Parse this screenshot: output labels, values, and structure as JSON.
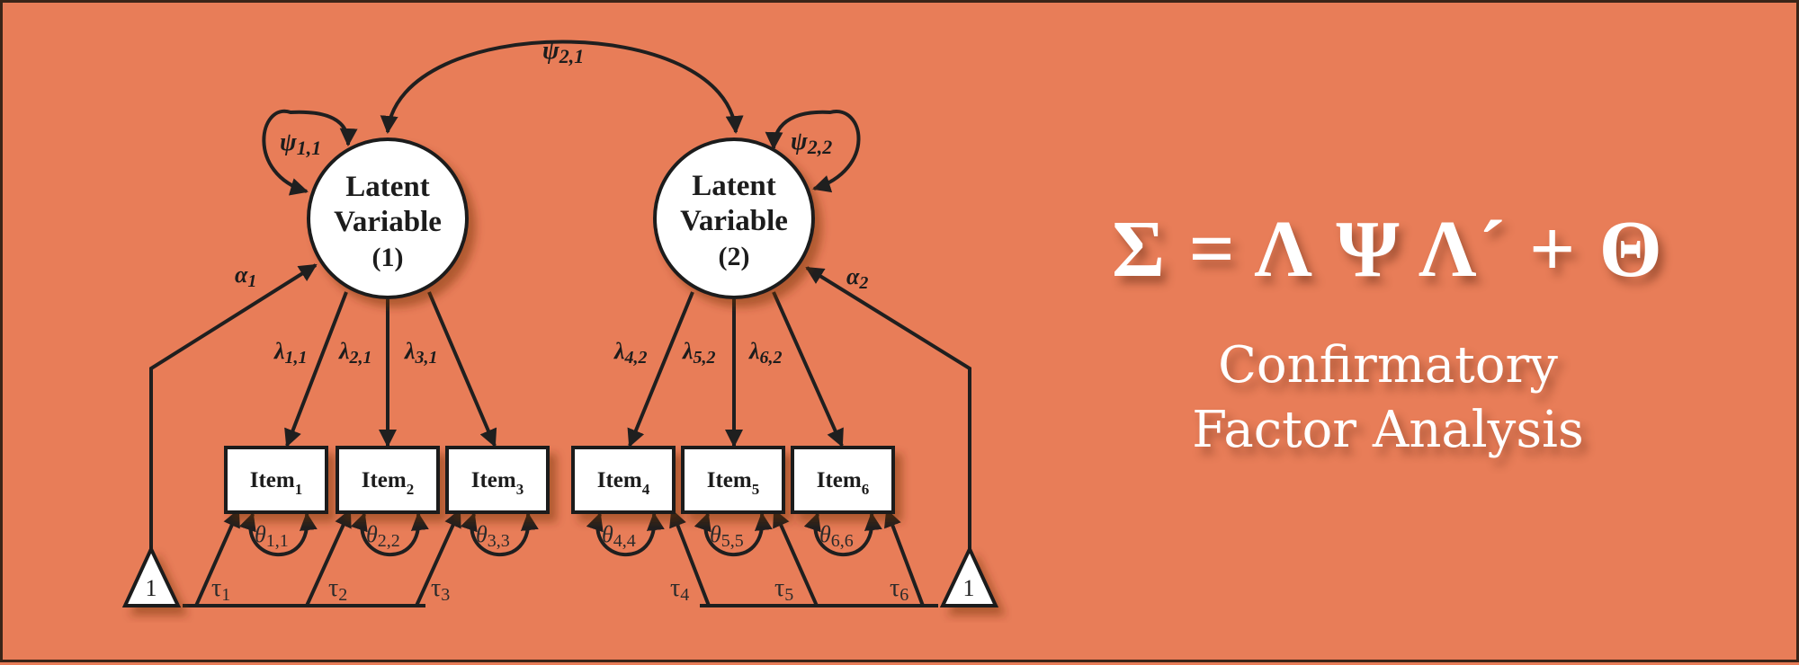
{
  "diagram": {
    "latent_variables": [
      {
        "line1": "Latent",
        "line2": "Variable",
        "line3": "(1)"
      },
      {
        "line1": "Latent",
        "line2": "Variable",
        "line3": "(2)"
      }
    ],
    "items": [
      {
        "base": "Item",
        "sub": "1"
      },
      {
        "base": "Item",
        "sub": "2"
      },
      {
        "base": "Item",
        "sub": "3"
      },
      {
        "base": "Item",
        "sub": "4"
      },
      {
        "base": "Item",
        "sub": "5"
      },
      {
        "base": "Item",
        "sub": "6"
      }
    ],
    "psi": [
      {
        "sym": "ψ",
        "sub": "1,1"
      },
      {
        "sym": "ψ",
        "sub": "2,2"
      },
      {
        "sym": "ψ",
        "sub": "2,1"
      }
    ],
    "alpha": [
      {
        "sym": "α",
        "sub": "1"
      },
      {
        "sym": "α",
        "sub": "2"
      }
    ],
    "lambda": [
      {
        "sym": "λ",
        "sub": "1,1"
      },
      {
        "sym": "λ",
        "sub": "2,1"
      },
      {
        "sym": "λ",
        "sub": "3,1"
      },
      {
        "sym": "λ",
        "sub": "4,2"
      },
      {
        "sym": "λ",
        "sub": "5,2"
      },
      {
        "sym": "λ",
        "sub": "6,2"
      }
    ],
    "theta": [
      {
        "sym": "θ",
        "sub": "1,1"
      },
      {
        "sym": "θ",
        "sub": "2,2"
      },
      {
        "sym": "θ",
        "sub": "3,3"
      },
      {
        "sym": "θ",
        "sub": "4,4"
      },
      {
        "sym": "θ",
        "sub": "5,5"
      },
      {
        "sym": "θ",
        "sub": "6,6"
      }
    ],
    "tau": [
      {
        "sym": "τ",
        "sub": "1"
      },
      {
        "sym": "τ",
        "sub": "2"
      },
      {
        "sym": "τ",
        "sub": "3"
      },
      {
        "sym": "τ",
        "sub": "4"
      },
      {
        "sym": "τ",
        "sub": "5"
      },
      {
        "sym": "τ",
        "sub": "6"
      }
    ],
    "constants": [
      "1",
      "1"
    ]
  },
  "formula": "Σ = Λ Ψ Λ´ + Θ",
  "title": {
    "line1": "Confirmatory",
    "line2": "Factor Analysis"
  },
  "colors": {
    "background": "#e87d58",
    "line": "#1f1f1f",
    "node_fill": "#ffffff",
    "text_light": "#ffffff"
  }
}
